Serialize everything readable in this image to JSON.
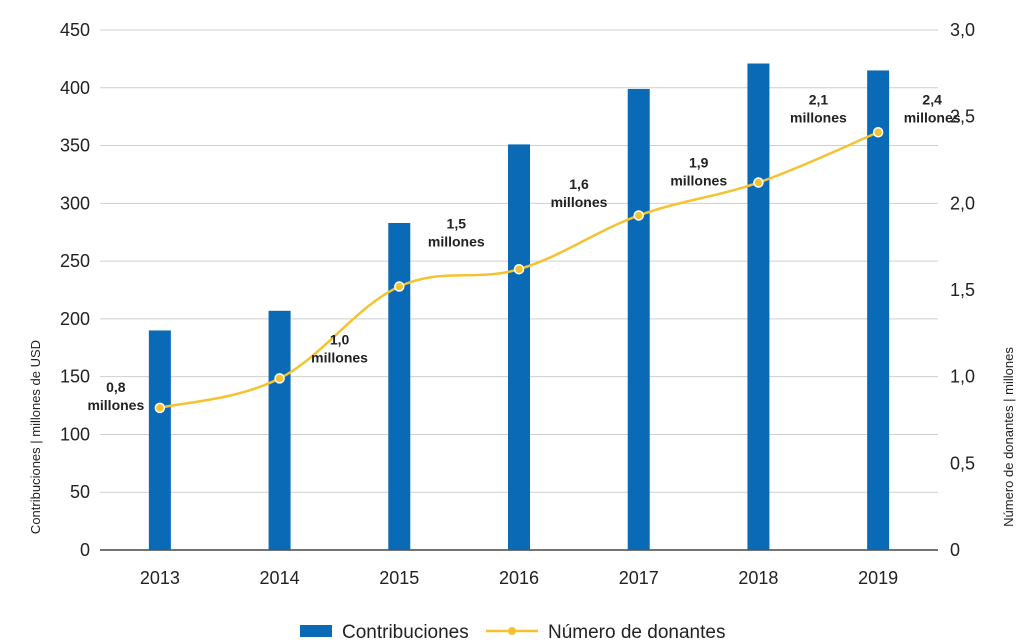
{
  "chart_data": {
    "type": "bar",
    "categories": [
      "2013",
      "2014",
      "2015",
      "2016",
      "2017",
      "2018",
      "2019"
    ],
    "series": [
      {
        "name": "Contribuciones",
        "axis": "left",
        "kind": "bar",
        "color": "#0a6ab6",
        "values": [
          190,
          207,
          283,
          351,
          399,
          421,
          415
        ]
      },
      {
        "name": "Número de donantes",
        "axis": "right",
        "kind": "line",
        "color": "#f5c231",
        "values": [
          0.82,
          0.99,
          1.52,
          1.62,
          1.93,
          2.12,
          2.41
        ],
        "labels": [
          [
            "0,8",
            "millones"
          ],
          [
            "1,0",
            "millones"
          ],
          [
            "1,5",
            "millones"
          ],
          [
            "1,6",
            "millones"
          ],
          [
            "1,9",
            "millones"
          ],
          [
            "2,1",
            "millones"
          ],
          [
            "2,4",
            "millones"
          ]
        ]
      }
    ],
    "ylabel": "Contribuciones | millones de USD",
    "y2label": "Número de donantes | millones",
    "ylim": [
      0,
      450
    ],
    "y2lim": [
      0,
      3
    ],
    "yticks": [
      "0",
      "50",
      "100",
      "150",
      "200",
      "250",
      "300",
      "350",
      "400",
      "450"
    ],
    "y2ticks": [
      "0",
      "0,5",
      "1,0",
      "1,5",
      "2,0",
      "2,5",
      "3,0"
    ],
    "grid": true,
    "legend": "bottom-center"
  }
}
